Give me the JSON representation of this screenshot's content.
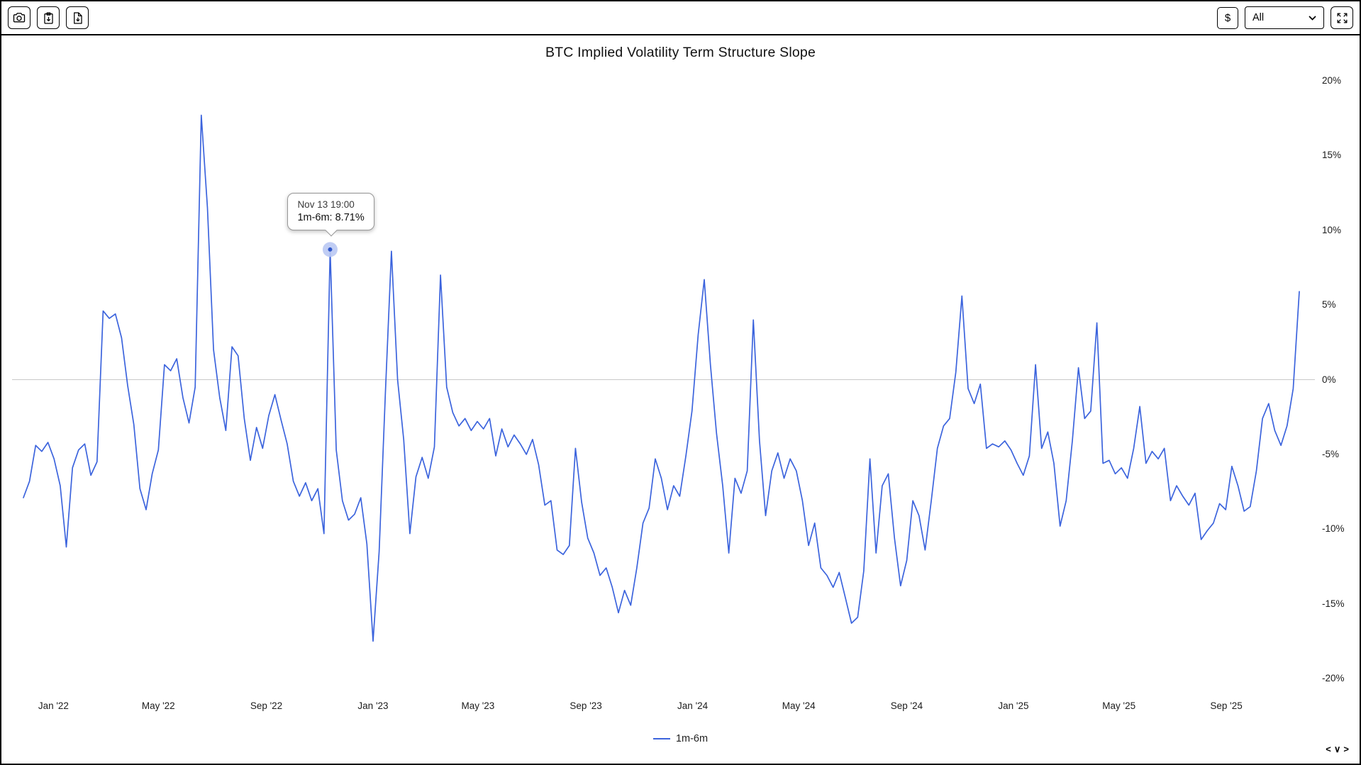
{
  "toolbar": {
    "screenshot_button": {
      "icon": "camera-icon"
    },
    "copy_button": {
      "icon": "clipboard-icon"
    },
    "download_button": {
      "icon": "file-download-icon"
    },
    "currency_button_label": "$",
    "range_dropdown": {
      "value": "All",
      "icon": "chevron-down-icon"
    },
    "expand_button": {
      "icon": "expand-arrows-icon"
    }
  },
  "pager": {
    "left": "<",
    "down": "∨",
    "right": ">"
  },
  "chart_data": {
    "type": "line",
    "title": "BTC Implied Volatility Term Structure Slope",
    "legend_position": "bottom",
    "grid": "zero-line-only",
    "ylim": [
      -20,
      20
    ],
    "y_unit": "%",
    "y_ticks": [
      {
        "value": 20,
        "label": "20%"
      },
      {
        "value": 15,
        "label": "15%"
      },
      {
        "value": 10,
        "label": "10%"
      },
      {
        "value": 5,
        "label": "5%"
      },
      {
        "value": 0,
        "label": "0%"
      },
      {
        "value": -5,
        "label": "-5%"
      },
      {
        "value": -10,
        "label": "-10%"
      },
      {
        "value": -15,
        "label": "-15%"
      },
      {
        "value": -20,
        "label": "-20%"
      }
    ],
    "x_ticks": [
      {
        "index": 4.9,
        "label": "Jan '22"
      },
      {
        "index": 22.0,
        "label": "May '22"
      },
      {
        "index": 39.6,
        "label": "Sep '22"
      },
      {
        "index": 57.0,
        "label": "Jan '23"
      },
      {
        "index": 74.1,
        "label": "May '23"
      },
      {
        "index": 91.7,
        "label": "Sep '23"
      },
      {
        "index": 109.1,
        "label": "Jan '24"
      },
      {
        "index": 126.4,
        "label": "May '24"
      },
      {
        "index": 144.0,
        "label": "Sep '24"
      },
      {
        "index": 161.4,
        "label": "Jan '25"
      },
      {
        "index": 178.6,
        "label": "May '25"
      },
      {
        "index": 196.1,
        "label": "Sep '25"
      }
    ],
    "series": [
      {
        "name": "1m-6m",
        "color": "#3c64dd",
        "values": [
          -7.9,
          -6.8,
          -4.4,
          -4.8,
          -4.2,
          -5.3,
          -7.1,
          -11.2,
          -5.9,
          -4.7,
          -4.3,
          -6.4,
          -5.5,
          4.6,
          4.1,
          4.4,
          2.8,
          -0.4,
          -3.0,
          -7.3,
          -8.7,
          -6.3,
          -4.7,
          1.0,
          0.6,
          1.4,
          -1.2,
          -2.9,
          -0.5,
          17.7,
          11.5,
          2.0,
          -1.2,
          -3.4,
          2.2,
          1.6,
          -2.6,
          -5.4,
          -3.2,
          -4.6,
          -2.4,
          -1.0,
          -2.7,
          -4.3,
          -6.8,
          -7.8,
          -6.9,
          -8.1,
          -7.3,
          -10.3,
          8.71,
          -4.7,
          -8.1,
          -9.4,
          -9.0,
          -7.9,
          -11.0,
          -17.5,
          -11.5,
          -1.0,
          8.6,
          0.0,
          -4.0,
          -10.3,
          -6.5,
          -5.2,
          -6.6,
          -4.5,
          7.0,
          -0.5,
          -2.2,
          -3.1,
          -2.6,
          -3.4,
          -2.8,
          -3.3,
          -2.6,
          -5.1,
          -3.3,
          -4.5,
          -3.7,
          -4.3,
          -5.0,
          -4.0,
          -5.7,
          -8.4,
          -8.1,
          -11.4,
          -11.7,
          -11.1,
          -4.6,
          -8.2,
          -10.6,
          -11.6,
          -13.1,
          -12.6,
          -13.9,
          -15.6,
          -14.1,
          -15.1,
          -12.6,
          -9.6,
          -8.6,
          -5.3,
          -6.6,
          -8.7,
          -7.1,
          -7.8,
          -5.1,
          -2.1,
          3.0,
          6.7,
          1.0,
          -3.6,
          -7.1,
          -11.6,
          -6.6,
          -7.6,
          -6.1,
          4.0,
          -4.1,
          -9.1,
          -6.1,
          -4.9,
          -6.6,
          -5.3,
          -6.1,
          -8.1,
          -11.1,
          -9.6,
          -12.6,
          -13.1,
          -13.9,
          -12.9,
          -14.6,
          -16.3,
          -15.9,
          -12.8,
          -5.3,
          -11.6,
          -7.1,
          -6.3,
          -10.6,
          -13.8,
          -12.1,
          -8.1,
          -9.1,
          -11.4,
          -8.1,
          -4.6,
          -3.1,
          -2.6,
          0.5,
          5.6,
          -0.6,
          -1.6,
          -0.3,
          -4.6,
          -4.3,
          -4.5,
          -4.1,
          -4.7,
          -5.6,
          -6.4,
          -5.1,
          1.0,
          -4.6,
          -3.5,
          -5.6,
          -9.8,
          -8.1,
          -4.1,
          0.8,
          -2.6,
          -2.1,
          3.8,
          -5.6,
          -5.4,
          -6.3,
          -5.9,
          -6.6,
          -4.6,
          -1.8,
          -5.6,
          -4.8,
          -5.3,
          -4.6,
          -8.1,
          -7.1,
          -7.8,
          -8.4,
          -7.6,
          -10.7,
          -10.1,
          -9.6,
          -8.3,
          -8.7,
          -5.8,
          -7.1,
          -8.8,
          -8.5,
          -6.1,
          -2.6,
          -1.6,
          -3.4,
          -4.4,
          -3.1,
          -0.6,
          5.9
        ]
      }
    ],
    "highlight": {
      "index": 50,
      "value": 8.71,
      "tooltip_line1": "Nov 13 19:00",
      "tooltip_line2": "1m-6m: 8.71%"
    }
  }
}
